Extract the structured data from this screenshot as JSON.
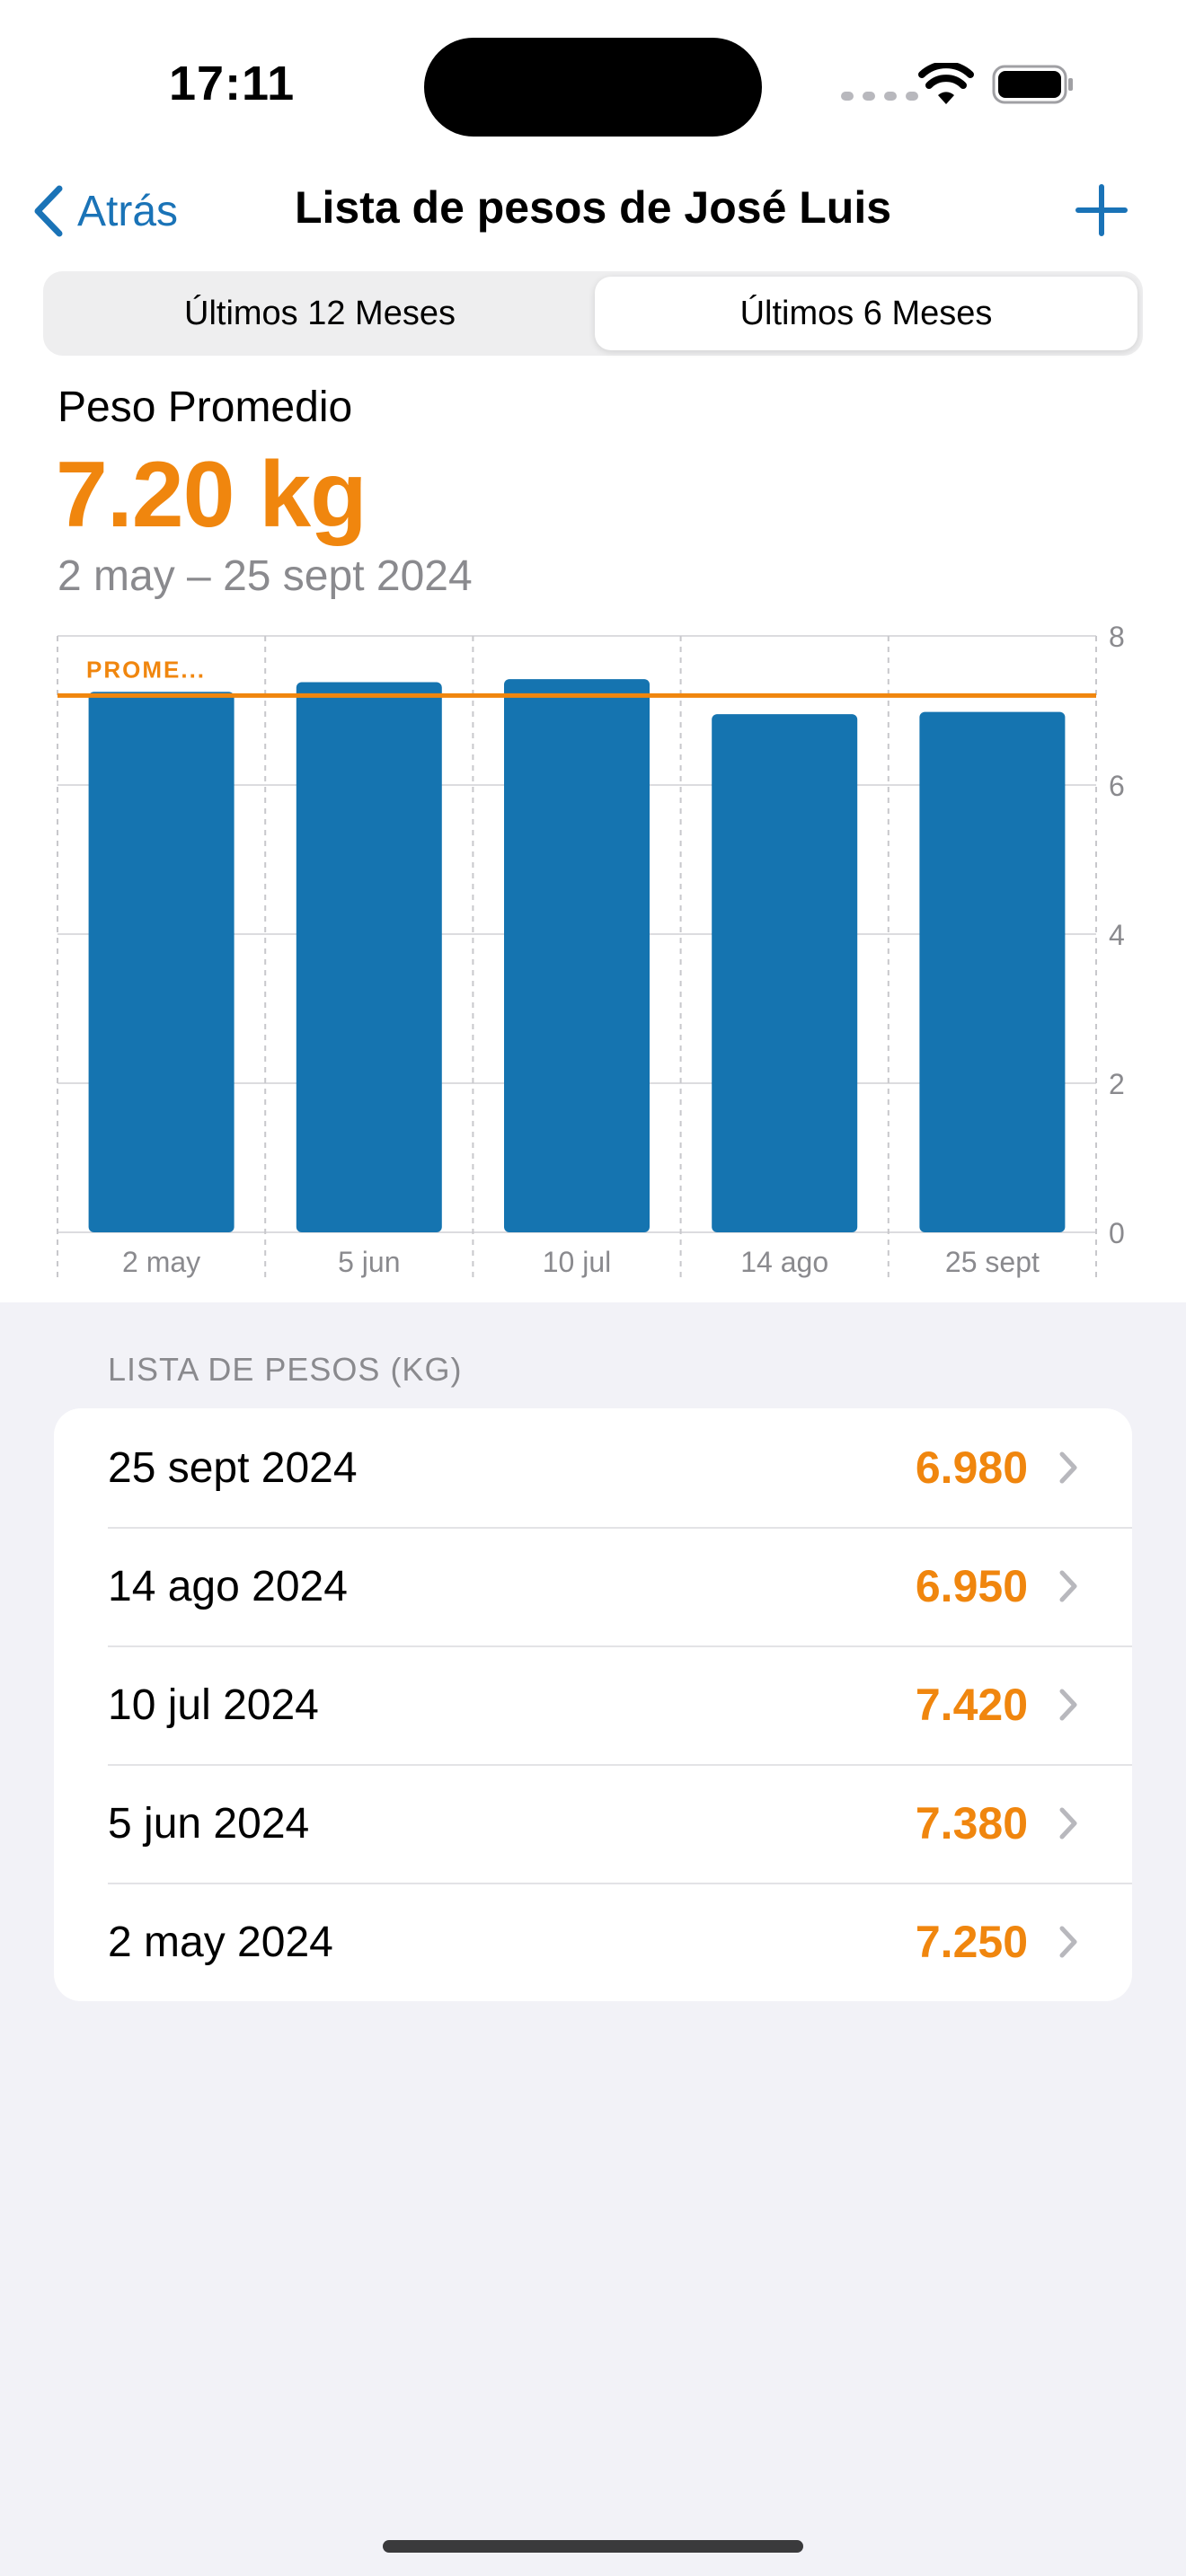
{
  "status_bar": {
    "time": "17:11"
  },
  "nav": {
    "back_label": "Atrás",
    "title": "Lista de pesos de José Luis"
  },
  "segmented": {
    "options": [
      "Últimos 12 Meses",
      "Últimos 6 Meses"
    ],
    "selected": "Últimos 6 Meses"
  },
  "summary": {
    "label": "Peso Promedio",
    "value": "7.20 kg",
    "range": "2 may – 25 sept 2024"
  },
  "chart_data": {
    "type": "bar",
    "categories": [
      "2 may",
      "5 jun",
      "10 jul",
      "14 ago",
      "25 sept"
    ],
    "values": [
      7.25,
      7.38,
      7.42,
      6.95,
      6.98
    ],
    "ylim": [
      0,
      8
    ],
    "yticks": [
      "0",
      "2",
      "4",
      "6",
      "8"
    ],
    "average": 7.2,
    "average_label": "PROME...",
    "grid": true,
    "y_axis_position": "right",
    "colors": {
      "bar": "#1574b0",
      "average": "#f0860e"
    }
  },
  "list": {
    "header": "LISTA DE PESOS (KG)",
    "rows": [
      {
        "date": "25 sept 2024",
        "value": "6.980"
      },
      {
        "date": "14 ago 2024",
        "value": "6.950"
      },
      {
        "date": "10 jul 2024",
        "value": "7.420"
      },
      {
        "date": "5 jun 2024",
        "value": "7.380"
      },
      {
        "date": "2 may 2024",
        "value": "7.250"
      }
    ]
  },
  "colors": {
    "accent": "#f0860e",
    "tint": "#1a73b7"
  }
}
